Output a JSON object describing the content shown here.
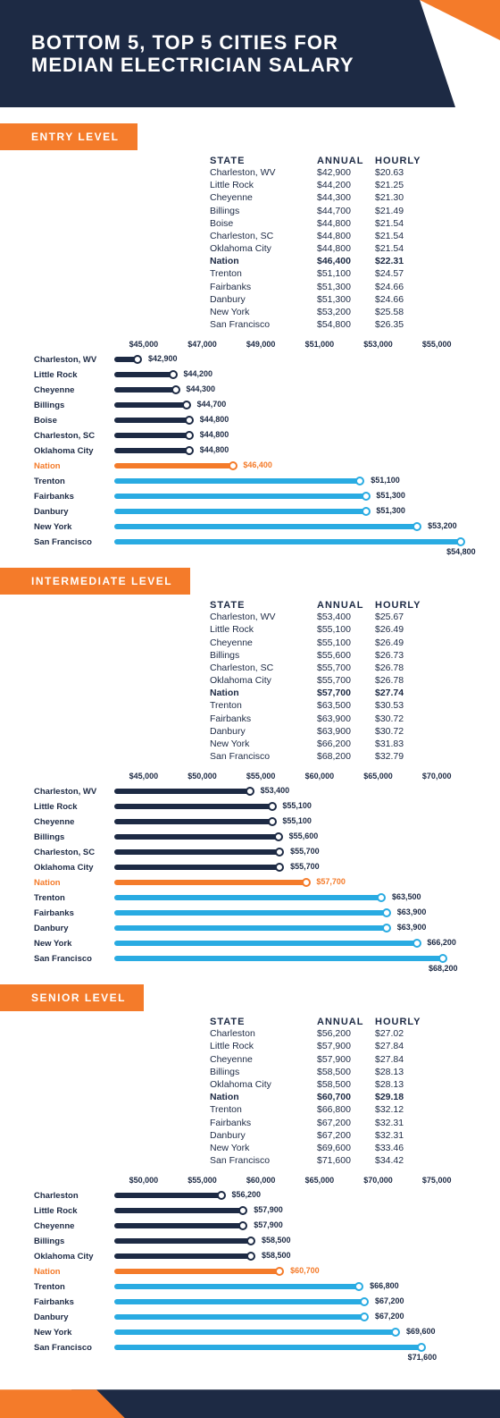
{
  "title_line1": "BOTTOM 5, TOP 5 CITIES FOR",
  "title_line2": "MEDIAN ELECTRICIAN SALARY",
  "colors": {
    "navy": "#1d2a44",
    "orange": "#f47b2a",
    "cyan": "#29abe2",
    "grid": "#eeeeee",
    "baseline": "#cccccc"
  },
  "columns": {
    "c1": "STATE",
    "c2": "ANNUAL",
    "c3": "HOURLY"
  },
  "sections": [
    {
      "label": "ENTRY LEVEL",
      "axis_min": 43000,
      "axis_max": 55000,
      "axis_ticks": [
        "$45,000",
        "$47,000",
        "$49,000",
        "$51,000",
        "$53,000",
        "$55,000"
      ],
      "rows": [
        {
          "state": "Charleston, WV",
          "annual": "$42,900",
          "hourly": "$20.63",
          "v": 42900,
          "grp": "low"
        },
        {
          "state": "Little Rock",
          "annual": "$44,200",
          "hourly": "$21.25",
          "v": 44200,
          "grp": "low"
        },
        {
          "state": "Cheyenne",
          "annual": "$44,300",
          "hourly": "$21.30",
          "v": 44300,
          "grp": "low"
        },
        {
          "state": "Billings",
          "annual": "$44,700",
          "hourly": "$21.49",
          "v": 44700,
          "grp": "low"
        },
        {
          "state": "Boise",
          "annual": "$44,800",
          "hourly": "$21.54",
          "v": 44800,
          "grp": "low"
        },
        {
          "state": "Charleston, SC",
          "annual": "$44,800",
          "hourly": "$21.54",
          "v": 44800,
          "grp": "low"
        },
        {
          "state": "Oklahoma City",
          "annual": "$44,800",
          "hourly": "$21.54",
          "v": 44800,
          "grp": "low"
        },
        {
          "state": "Nation",
          "annual": "$46,400",
          "hourly": "$22.31",
          "v": 46400,
          "grp": "nation",
          "bold": true
        },
        {
          "state": "Trenton",
          "annual": "$51,100",
          "hourly": "$24.57",
          "v": 51100,
          "grp": "high"
        },
        {
          "state": "Fairbanks",
          "annual": "$51,300",
          "hourly": "$24.66",
          "v": 51300,
          "grp": "high"
        },
        {
          "state": "Danbury",
          "annual": "$51,300",
          "hourly": "$24.66",
          "v": 51300,
          "grp": "high"
        },
        {
          "state": "New York",
          "annual": "$53,200",
          "hourly": "$25.58",
          "v": 53200,
          "grp": "high"
        },
        {
          "state": "San Francisco",
          "annual": "$54,800",
          "hourly": "$26.35",
          "v": 54800,
          "grp": "high",
          "below": true
        }
      ]
    },
    {
      "label": "INTERMEDIATE LEVEL",
      "axis_min": 45000,
      "axis_max": 70000,
      "axis_ticks": [
        "$45,000",
        "$50,000",
        "$55,000",
        "$60,000",
        "$65,000",
        "$70,000"
      ],
      "rows": [
        {
          "state": "Charleston, WV",
          "annual": "$53,400",
          "hourly": "$25.67",
          "v": 53400,
          "grp": "low"
        },
        {
          "state": "Little Rock",
          "annual": "$55,100",
          "hourly": "$26.49",
          "v": 55100,
          "grp": "low"
        },
        {
          "state": "Cheyenne",
          "annual": "$55,100",
          "hourly": "$26.49",
          "v": 55100,
          "grp": "low"
        },
        {
          "state": "Billings",
          "annual": "$55,600",
          "hourly": "$26.73",
          "v": 55600,
          "grp": "low"
        },
        {
          "state": "Charleston, SC",
          "annual": "$55,700",
          "hourly": "$26.78",
          "v": 55700,
          "grp": "low"
        },
        {
          "state": "Oklahoma City",
          "annual": "$55,700",
          "hourly": "$26.78",
          "v": 55700,
          "grp": "low"
        },
        {
          "state": "Nation",
          "annual": "$57,700",
          "hourly": "$27.74",
          "v": 57700,
          "grp": "nation",
          "bold": true
        },
        {
          "state": "Trenton",
          "annual": "$63,500",
          "hourly": "$30.53",
          "v": 63500,
          "grp": "high"
        },
        {
          "state": "Fairbanks",
          "annual": "$63,900",
          "hourly": "$30.72",
          "v": 63900,
          "grp": "high"
        },
        {
          "state": "Danbury",
          "annual": "$63,900",
          "hourly": "$30.72",
          "v": 63900,
          "grp": "high"
        },
        {
          "state": "New York",
          "annual": "$66,200",
          "hourly": "$31.83",
          "v": 66200,
          "grp": "high"
        },
        {
          "state": "San Francisco",
          "annual": "$68,200",
          "hourly": "$32.79",
          "v": 68200,
          "grp": "high",
          "below": true
        }
      ]
    },
    {
      "label": "SENIOR LEVEL",
      "axis_min": 50000,
      "axis_max": 75000,
      "axis_ticks": [
        "$50,000",
        "$55,000",
        "$60,000",
        "$65,000",
        "$70,000",
        "$75,000"
      ],
      "rows": [
        {
          "state": "Charleston",
          "annual": "$56,200",
          "hourly": "$27.02",
          "v": 56200,
          "grp": "low"
        },
        {
          "state": "Little Rock",
          "annual": "$57,900",
          "hourly": "$27.84",
          "v": 57900,
          "grp": "low"
        },
        {
          "state": "Cheyenne",
          "annual": "$57,900",
          "hourly": "$27.84",
          "v": 57900,
          "grp": "low"
        },
        {
          "state": "Billings",
          "annual": "$58,500",
          "hourly": "$28.13",
          "v": 58500,
          "grp": "low"
        },
        {
          "state": "Oklahoma City",
          "annual": "$58,500",
          "hourly": "$28.13",
          "v": 58500,
          "grp": "low"
        },
        {
          "state": "Nation",
          "annual": "$60,700",
          "hourly": "$29.18",
          "v": 60700,
          "grp": "nation",
          "bold": true
        },
        {
          "state": "Trenton",
          "annual": "$66,800",
          "hourly": "$32.12",
          "v": 66800,
          "grp": "high"
        },
        {
          "state": "Fairbanks",
          "annual": "$67,200",
          "hourly": "$32.31",
          "v": 67200,
          "grp": "high"
        },
        {
          "state": "Danbury",
          "annual": "$67,200",
          "hourly": "$32.31",
          "v": 67200,
          "grp": "high"
        },
        {
          "state": "New York",
          "annual": "$69,600",
          "hourly": "$33.46",
          "v": 69600,
          "grp": "high"
        },
        {
          "state": "San Francisco",
          "annual": "$71,600",
          "hourly": "$34.42",
          "v": 71600,
          "grp": "high",
          "below": true
        }
      ]
    }
  ]
}
